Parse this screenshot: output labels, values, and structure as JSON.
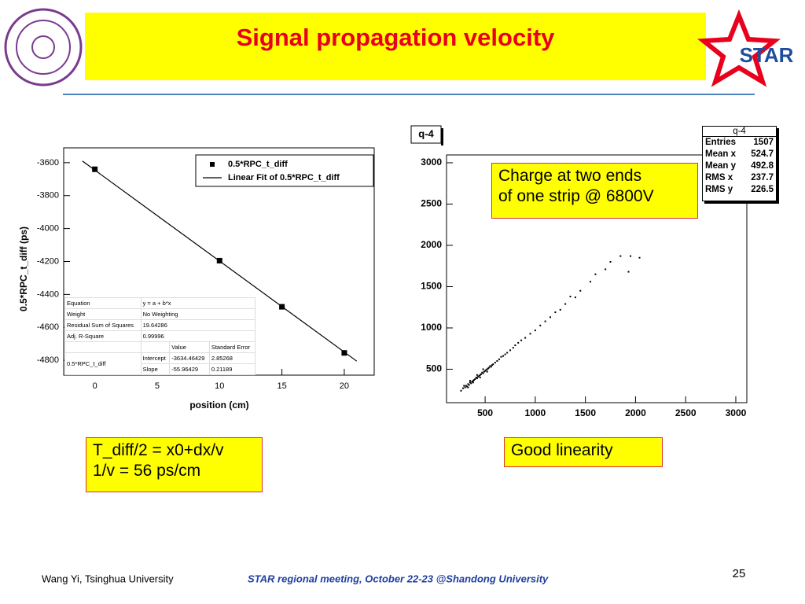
{
  "header": {
    "title": "Signal propagation velocity",
    "logo_text": "STAR"
  },
  "chart_data": [
    {
      "type": "scatter",
      "x_label": "position (cm)",
      "y_label": "0.5*RPC_t_diff (ps)",
      "series": [
        {
          "name": "0.5*RPC_t_diff",
          "color": "#000000",
          "marker": "square",
          "x": [
            0,
            10,
            15,
            20
          ],
          "values": [
            -3640,
            -4195,
            -4475,
            -4755
          ]
        },
        {
          "name": "Linear Fit of 0.5*RPC_t_diff",
          "color": "#000000",
          "marker": "line",
          "x": [
            -1,
            21
          ],
          "values": [
            -3590,
            -4805
          ]
        }
      ],
      "xlim": [
        -2.5,
        22.4
      ],
      "xticks": [
        0,
        5,
        10,
        15,
        20
      ],
      "ylim": [
        -4890,
        -3510
      ],
      "yticks": [
        -4800,
        -4600,
        -4400,
        -4200,
        -4000,
        -3800,
        -3600
      ],
      "legend": "top-right",
      "fit_table": {
        "equation": [
          "Equation",
          "y = a + b*x"
        ],
        "weight": [
          "Weight",
          "No Weighting"
        ],
        "residual": [
          "Residual Sum of Squares",
          "19.64286"
        ],
        "adj": [
          "Adj. R-Square",
          "0.99996"
        ],
        "headers": [
          "Value",
          "Standard Error"
        ],
        "dataset": "0.5*RPC_t_diff",
        "params": [
          [
            "Intercept",
            "-3634.46429",
            "2.85268"
          ],
          [
            "Slope",
            "-55.96429",
            "0.21189"
          ]
        ]
      }
    },
    {
      "type": "scatter",
      "title": "q-4",
      "color": "#000000",
      "x": [
        260,
        280,
        300,
        310,
        320,
        330,
        340,
        350,
        360,
        370,
        380,
        390,
        400,
        410,
        420,
        430,
        440,
        450,
        460,
        470,
        480,
        490,
        500,
        510,
        520,
        530,
        540,
        550,
        560,
        570,
        580,
        600,
        620,
        640,
        660,
        680,
        700,
        720,
        750,
        780,
        800,
        830,
        860,
        900,
        950,
        1000,
        1050,
        1100,
        1150,
        1200,
        1250,
        1300,
        1350,
        1400,
        1450,
        1550,
        1600,
        1700,
        1750,
        1850,
        1950,
        2040,
        1930,
        290,
        330,
        350,
        380,
        420,
        450,
        480,
        520
      ],
      "values": [
        240,
        270,
        280,
        300,
        290,
        320,
        310,
        340,
        330,
        350,
        360,
        370,
        380,
        400,
        390,
        410,
        420,
        430,
        440,
        460,
        450,
        470,
        480,
        490,
        500,
        510,
        520,
        540,
        530,
        550,
        560,
        580,
        600,
        620,
        650,
        660,
        680,
        700,
        730,
        760,
        790,
        820,
        850,
        880,
        930,
        970,
        1030,
        1080,
        1130,
        1190,
        1220,
        1290,
        1380,
        1370,
        1450,
        1560,
        1650,
        1710,
        1800,
        1870,
        1870,
        1850,
        1680,
        300,
        280,
        360,
        340,
        430,
        400,
        500,
        470
      ],
      "xlim": [
        115,
        3110
      ],
      "xticks": [
        500,
        1000,
        1500,
        2000,
        2500,
        3000
      ],
      "ylim": [
        95,
        3095
      ],
      "yticks": [
        500,
        1000,
        1500,
        2000,
        2500,
        3000
      ],
      "stats": {
        "title": "q-4",
        "rows": [
          [
            "Entries",
            "1507"
          ],
          [
            "Mean x",
            "524.7"
          ],
          [
            "Mean y",
            "492.8"
          ],
          [
            "RMS x",
            "237.7"
          ],
          [
            "RMS y",
            "226.5"
          ]
        ]
      }
    }
  ],
  "boxes": {
    "charge": [
      "Charge at two ends",
      "of one strip @ 6800V"
    ],
    "formula": [
      "T_diff/2 = x0+dx/v",
      "1/v = 56 ps/cm"
    ],
    "linearity": "Good linearity"
  },
  "footer": {
    "author": "Wang Yi, Tsinghua University",
    "meeting": "STAR regional meeting, October 22-23 @Shandong University",
    "page": "25"
  }
}
